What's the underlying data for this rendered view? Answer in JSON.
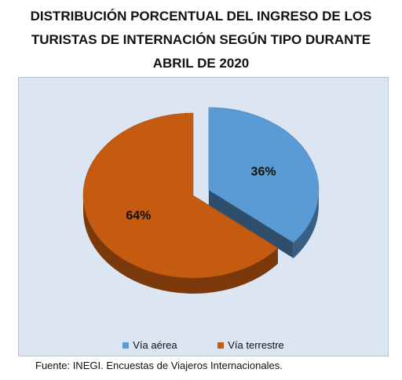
{
  "title_lines": [
    "DISTRIBUCIÓN PORCENTUAL DEL INGRESO DE LOS",
    "TURISTAS DE INTERNACIÓN SEGÚN TIPO DURANTE",
    "ABRIL DE 2020"
  ],
  "source": "Fuente: INEGI. Encuestas de Viajeros Internacionales.",
  "chart_data": {
    "type": "pie",
    "title": "DISTRIBUCIÓN PORCENTUAL DEL INGRESO DE LOS TURISTAS DE INTERNACIÓN SEGÚN TIPO DURANTE ABRIL DE 2020",
    "categories": [
      "Vía aérea",
      "Vía terrestre"
    ],
    "values": [
      36,
      64
    ],
    "data_labels": [
      "36%",
      "64%"
    ],
    "colors": [
      "#5b9bd5",
      "#c55a11"
    ],
    "exploded": "Vía aérea",
    "style": "3d",
    "legend_position": "bottom"
  }
}
